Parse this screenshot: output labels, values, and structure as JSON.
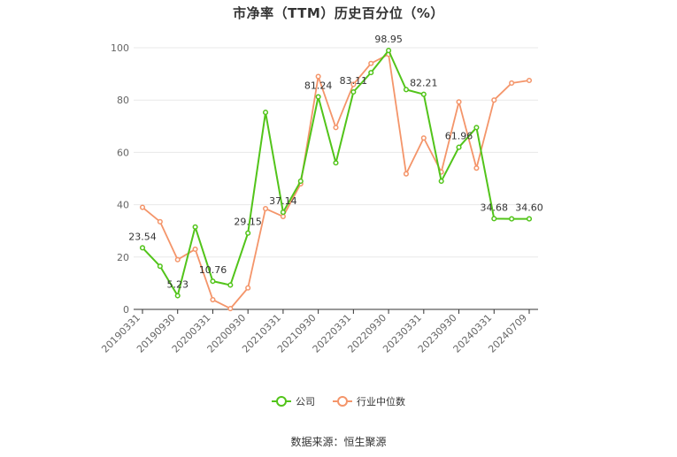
{
  "chart_data": {
    "type": "line",
    "title": "市净率（TTM）历史百分位（%）",
    "x_tick_labels": [
      "20190331",
      "20190930",
      "20200331",
      "20200930",
      "20210331",
      "20210930",
      "20220331",
      "20220930",
      "20230331",
      "20230930",
      "20240331",
      "20240709"
    ],
    "ylim": [
      0,
      100
    ],
    "y_ticks": [
      0,
      20,
      40,
      60,
      80,
      100
    ],
    "grid": true,
    "legend_position": "bottom",
    "series": [
      {
        "name": "公司",
        "color": "#52c41a",
        "values": [
          23.54,
          16.5,
          5.23,
          31.5,
          10.76,
          9.3,
          29.15,
          75.3,
          37.14,
          49.0,
          81.24,
          56.0,
          83.11,
          90.5,
          98.95,
          84.0,
          82.21,
          49.0,
          61.96,
          69.5,
          34.68,
          34.6,
          34.6
        ],
        "labels": {
          "0": "23.54",
          "2": "5.23",
          "4": "10.76",
          "6": "29.15",
          "8": "37.14",
          "10": "81.24",
          "12": "83.11",
          "14": "98.95",
          "16": "82.21",
          "18": "61.96",
          "20": "34.68",
          "22": "34.60"
        }
      },
      {
        "name": "行业中位数",
        "color": "#f4956a",
        "values": [
          39.0,
          33.5,
          19.0,
          23.0,
          3.7,
          0.3,
          8.2,
          38.5,
          35.5,
          48.0,
          89.0,
          69.5,
          86.0,
          94.0,
          97.5,
          51.8,
          65.5,
          52.5,
          79.3,
          54.0,
          80.0,
          86.5,
          87.5
        ]
      }
    ]
  },
  "legend": {
    "company_label": "公司",
    "industry_label": "行业中位数"
  },
  "source_text": "数据来源：恒生聚源"
}
